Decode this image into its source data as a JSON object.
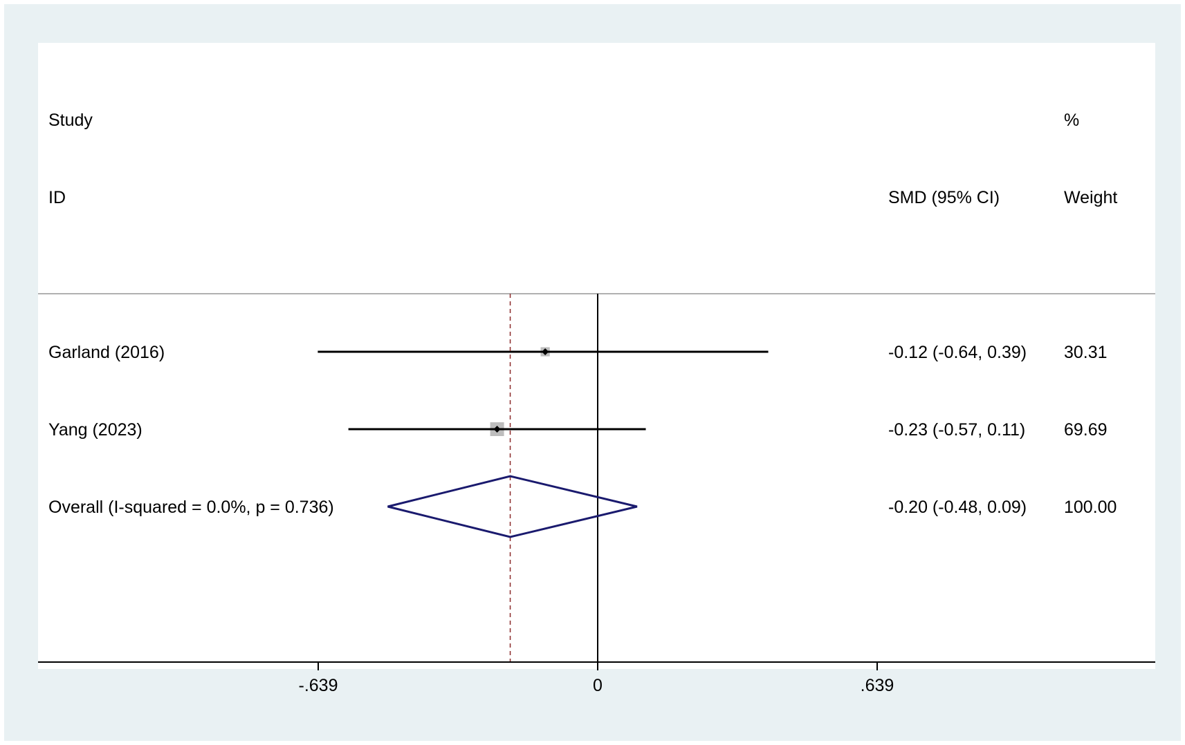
{
  "header": {
    "study_label": "Study",
    "id_label": "ID",
    "effect_label": "SMD (95% CI)",
    "percent_label": "%",
    "weight_label": "Weight"
  },
  "chart_data": {
    "type": "forest",
    "xlim": [
      -0.94,
      0.805
    ],
    "xticks": [
      {
        "value": -0.639,
        "label": "-.639"
      },
      {
        "value": 0,
        "label": "0"
      },
      {
        "value": 0.639,
        "label": ".639"
      }
    ],
    "null_line": 0,
    "overall_line": -0.2,
    "studies": [
      {
        "name": "Garland (2016)",
        "effect": -0.12,
        "lower": -0.64,
        "upper": 0.39,
        "ci_text": "-0.12 (-0.64, 0.39)",
        "weight": 30.31,
        "weight_text": "30.31"
      },
      {
        "name": "Yang (2023)",
        "effect": -0.23,
        "lower": -0.57,
        "upper": 0.11,
        "ci_text": "-0.23 (-0.57, 0.11)",
        "weight": 69.69,
        "weight_text": "69.69"
      }
    ],
    "overall": {
      "name": "Overall  (I-squared = 0.0%, p = 0.736)",
      "effect": -0.2,
      "lower": -0.48,
      "upper": 0.09,
      "ci_text": "-0.20 (-0.48, 0.09)",
      "weight_text": "100.00"
    },
    "colors": {
      "ci_line": "#000000",
      "weight_box": "#bdbdbd",
      "diamond": "#1a1a6e",
      "overall_dashed": "#8b2a2a",
      "background": "#e9f1f3"
    }
  }
}
